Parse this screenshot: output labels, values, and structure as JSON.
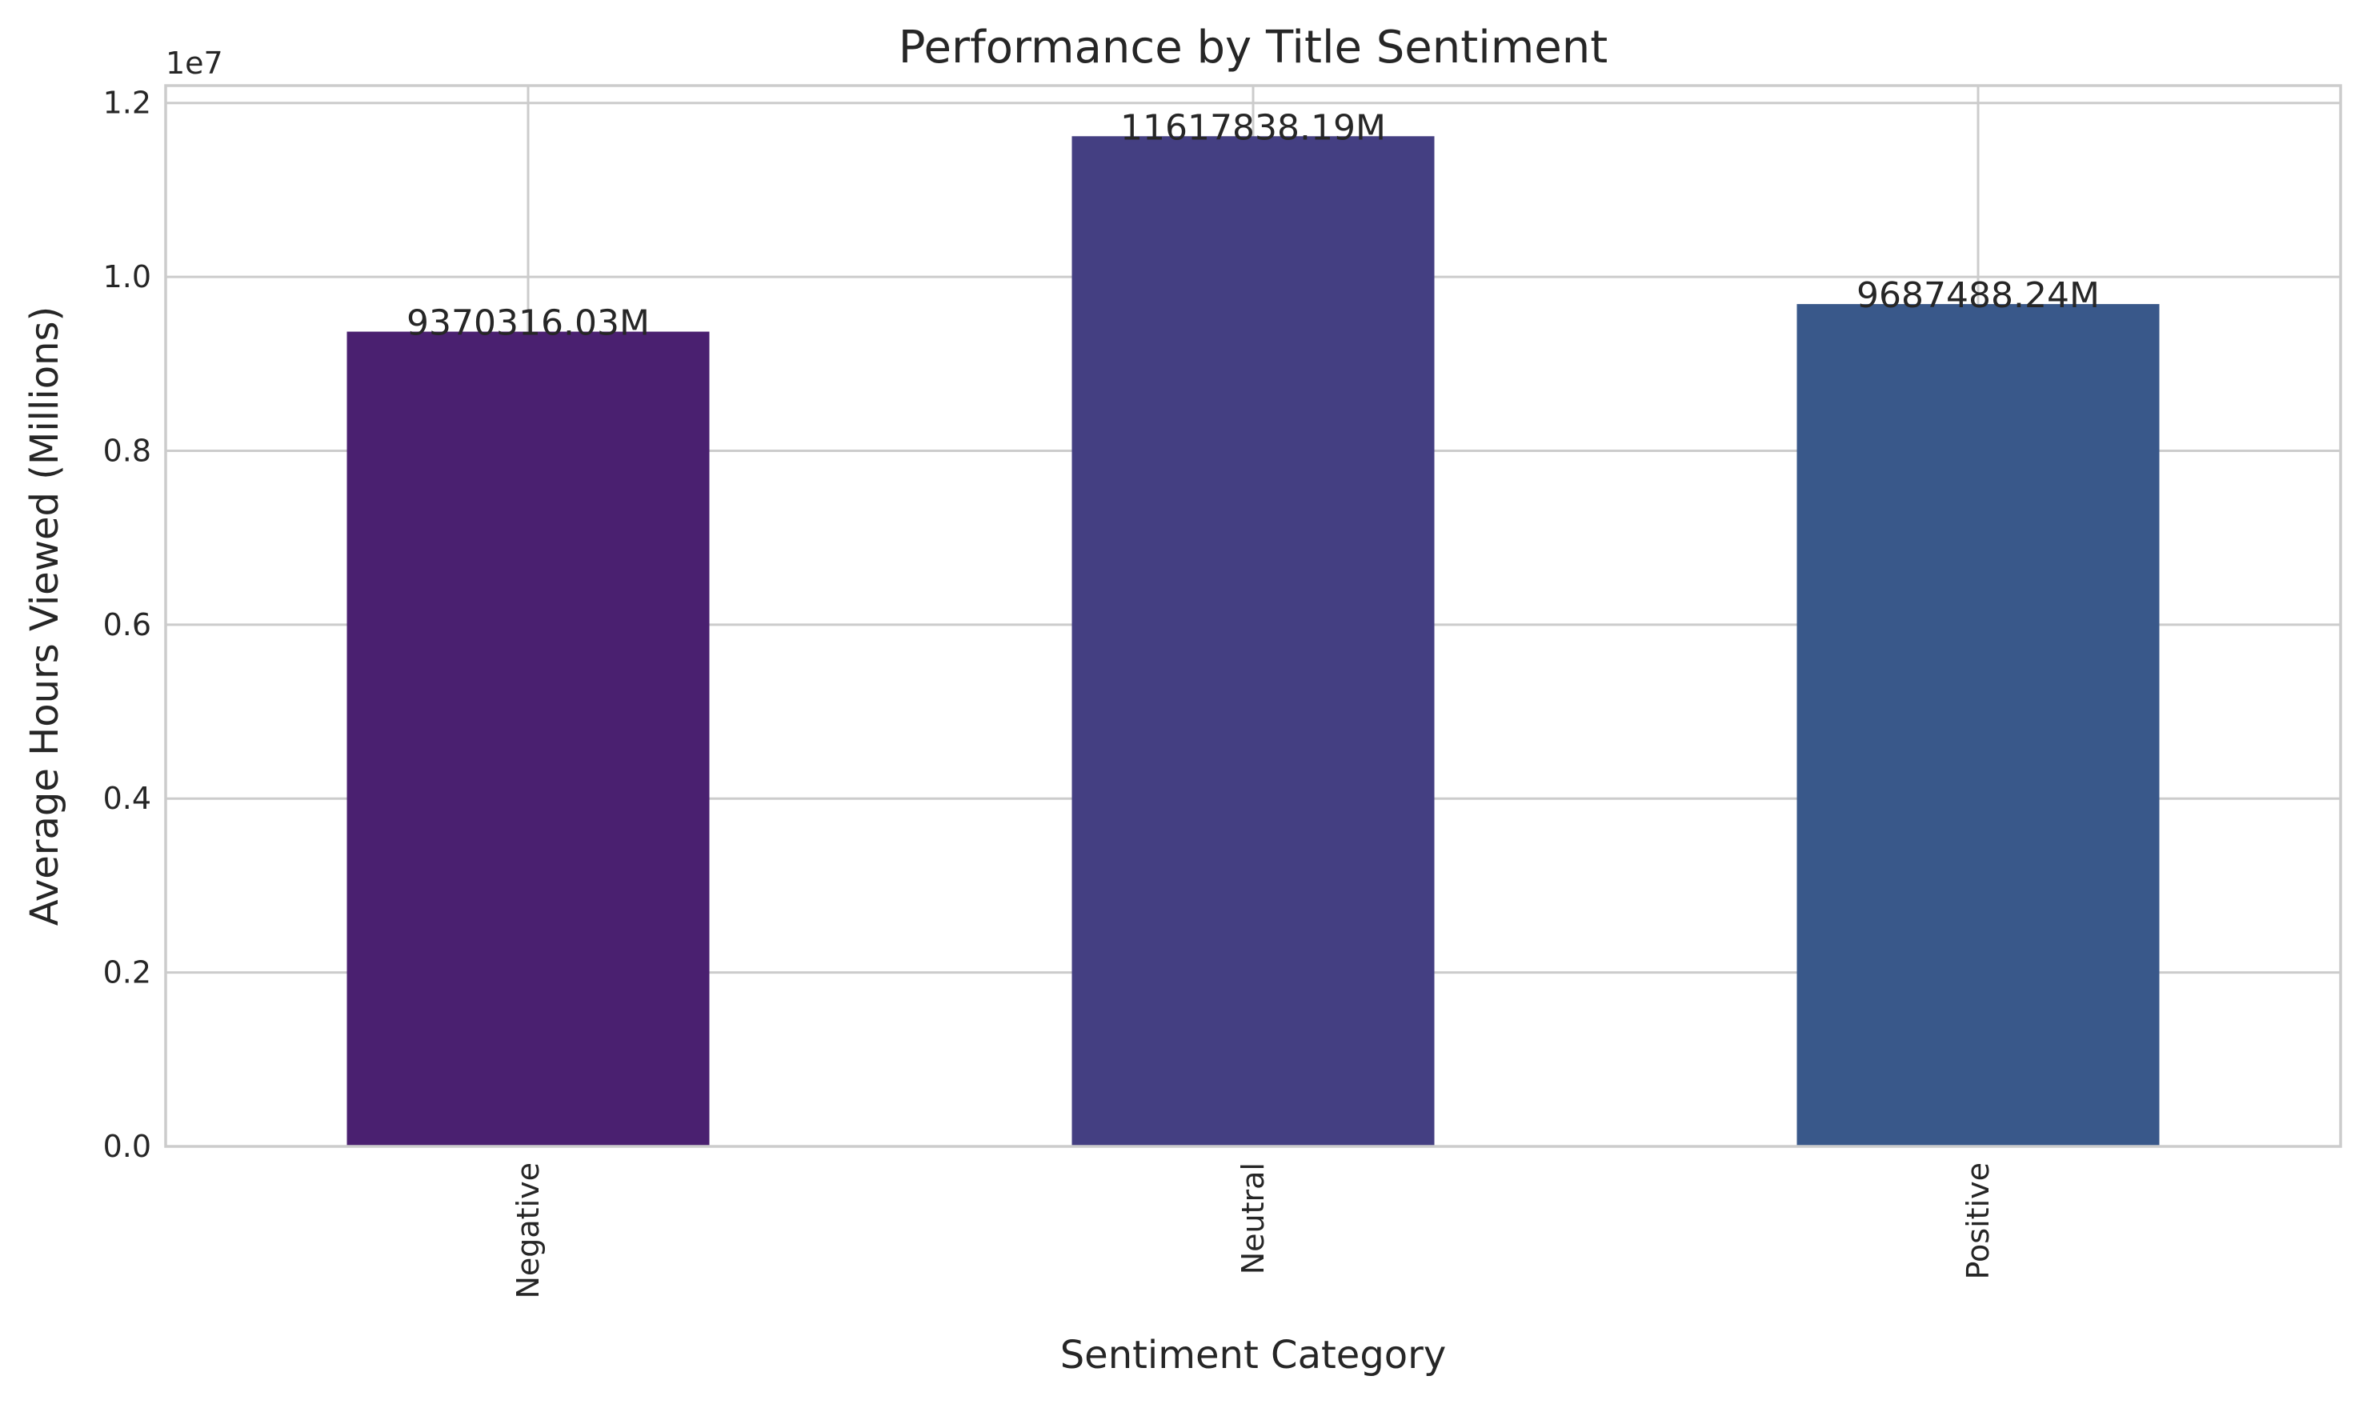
{
  "chart_data": {
    "type": "bar",
    "title": "Performance by Title Sentiment",
    "xlabel": "Sentiment Category",
    "ylabel": "Average Hours Viewed (Millions)",
    "y_offset_label": "1e7",
    "categories": [
      "Negative",
      "Neutral",
      "Positive"
    ],
    "values": [
      9370316.03,
      11617838.19,
      9687488.24
    ],
    "data_labels": [
      "9370316.03M",
      "11617838.19M",
      "9687488.24M"
    ],
    "bar_colors": [
      "#4a2070",
      "#443f82",
      "#39588a"
    ],
    "ylim": [
      0,
      12200000
    ],
    "yticks": [
      0,
      2000000,
      4000000,
      6000000,
      8000000,
      10000000,
      12000000
    ],
    "ytick_labels": [
      "0.0",
      "0.2",
      "0.4",
      "0.6",
      "0.8",
      "1.0",
      "1.2"
    ],
    "grid": true,
    "x_tick_rotation": "vertical"
  }
}
